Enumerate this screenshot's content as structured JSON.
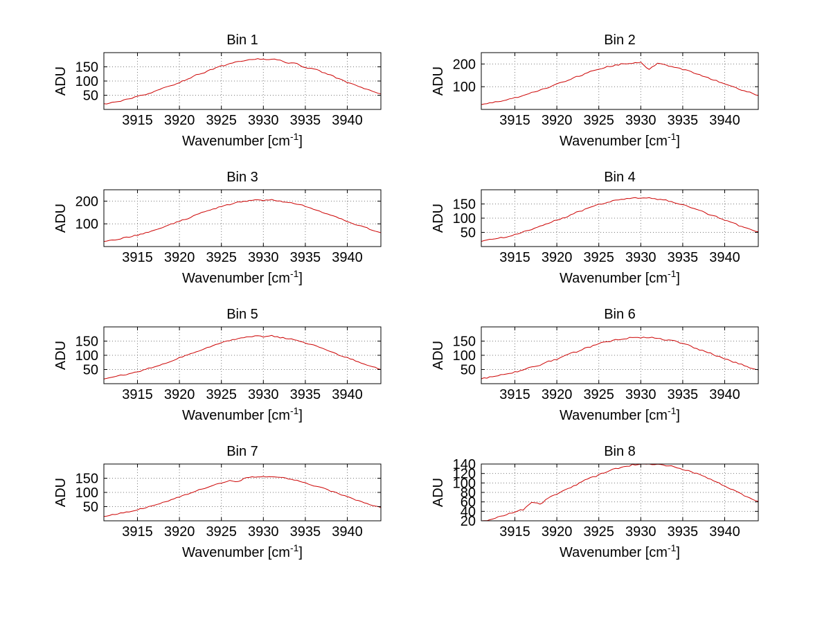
{
  "style": {
    "background": "#ffffff",
    "line_color": "#cc0000",
    "grid_color": "#777777",
    "axis_color": "#000000",
    "text_color": "#000000"
  },
  "axes_common": {
    "xlim": [
      3911,
      3944
    ],
    "xticks": [
      3915,
      3920,
      3925,
      3930,
      3935,
      3940
    ],
    "xlabel_pre": "Wavenumber [cm",
    "xlabel_sup": "-1",
    "xlabel_post": "]",
    "ylabel": "ADU",
    "grid": true
  },
  "chart_data": [
    {
      "type": "line",
      "title": "Bin 1",
      "x_start": 3911,
      "x_step": 1,
      "ylim": [
        0,
        200
      ],
      "yticks": [
        50,
        100,
        150
      ],
      "noise_amplitude": 2,
      "values": [
        18,
        24,
        30,
        36,
        45,
        53,
        62,
        74,
        84,
        95,
        108,
        121,
        131,
        143,
        153,
        160,
        169,
        173,
        178,
        176,
        178,
        173,
        163,
        161,
        147,
        144,
        131,
        121,
        107,
        96,
        85,
        72,
        64,
        55
      ]
    },
    {
      "type": "line",
      "title": "Bin 2",
      "x_start": 3911,
      "x_step": 1,
      "ylim": [
        0,
        250
      ],
      "yticks": [
        100,
        200
      ],
      "noise_amplitude": 2.5,
      "values": [
        23,
        28,
        34,
        43,
        51,
        60,
        73,
        86,
        97,
        112,
        124,
        140,
        151,
        166,
        176,
        188,
        194,
        202,
        204,
        206,
        176,
        202,
        194,
        188,
        176,
        166,
        153,
        138,
        126,
        110,
        99,
        84,
        74,
        62
      ]
    },
    {
      "type": "line",
      "title": "Bin 3",
      "x_start": 3911,
      "x_step": 1,
      "ylim": [
        0,
        250
      ],
      "yticks": [
        100,
        200
      ],
      "noise_amplitude": 2.5,
      "values": [
        22,
        28,
        35,
        42,
        51,
        61,
        72,
        85,
        98,
        111,
        124,
        139,
        153,
        164,
        177,
        186,
        196,
        200,
        206,
        203,
        205,
        199,
        196,
        186,
        178,
        165,
        151,
        140,
        124,
        112,
        97,
        86,
        72,
        61
      ]
    },
    {
      "type": "line",
      "title": "Bin 4",
      "x_start": 3911,
      "x_step": 1,
      "ylim": [
        0,
        200
      ],
      "yticks": [
        50,
        100,
        150
      ],
      "noise_amplitude": 2,
      "values": [
        18,
        24,
        29,
        34,
        43,
        52,
        60,
        72,
        81,
        94,
        103,
        117,
        126,
        139,
        148,
        155,
        164,
        167,
        172,
        170,
        173,
        167,
        164,
        155,
        148,
        137,
        128,
        115,
        105,
        92,
        83,
        70,
        62,
        52
      ]
    },
    {
      "type": "line",
      "title": "Bin 5",
      "x_start": 3911,
      "x_step": 1,
      "ylim": [
        0,
        200
      ],
      "yticks": [
        50,
        100,
        150
      ],
      "noise_amplitude": 2,
      "values": [
        17,
        23,
        29,
        34,
        42,
        51,
        59,
        70,
        79,
        91,
        103,
        112,
        125,
        134,
        145,
        151,
        160,
        163,
        168,
        166,
        168,
        163,
        159,
        153,
        143,
        135,
        124,
        114,
        101,
        92,
        80,
        69,
        60,
        50
      ]
    },
    {
      "type": "line",
      "title": "Bin 6",
      "x_start": 3911,
      "x_step": 1,
      "ylim": [
        0,
        200
      ],
      "yticks": [
        50,
        100,
        150
      ],
      "noise_amplitude": 2.5,
      "values": [
        17,
        22,
        28,
        33,
        41,
        49,
        58,
        66,
        78,
        87,
        100,
        109,
        121,
        130,
        141,
        147,
        155,
        158,
        163,
        161,
        163,
        158,
        155,
        150,
        140,
        132,
        119,
        111,
        98,
        89,
        76,
        68,
        57,
        49
      ]
    },
    {
      "type": "line",
      "title": "Bin 7",
      "x_start": 3911,
      "x_step": 1,
      "ylim": [
        0,
        200
      ],
      "yticks": [
        50,
        100,
        150
      ],
      "noise_amplitude": 1.5,
      "values": [
        16,
        21,
        27,
        32,
        39,
        47,
        54,
        65,
        73,
        85,
        94,
        106,
        114,
        126,
        133,
        142,
        138,
        153,
        154,
        156,
        155,
        153,
        148,
        142,
        134,
        124,
        116,
        105,
        95,
        84,
        74,
        64,
        55,
        46
      ]
    },
    {
      "type": "line",
      "title": "Bin 8",
      "x_start": 3911,
      "x_step": 1,
      "ylim": [
        20,
        140
      ],
      "yticks": [
        20,
        40,
        60,
        80,
        100,
        120,
        140
      ],
      "noise_amplitude": 1.5,
      "values": [
        19,
        23,
        28,
        33,
        39,
        44,
        59,
        55,
        68,
        76,
        85,
        93,
        103,
        110,
        117,
        124,
        130,
        134,
        138,
        139,
        140,
        139,
        137,
        135,
        129,
        124,
        118,
        110,
        102,
        93,
        85,
        76,
        68,
        61
      ]
    }
  ]
}
